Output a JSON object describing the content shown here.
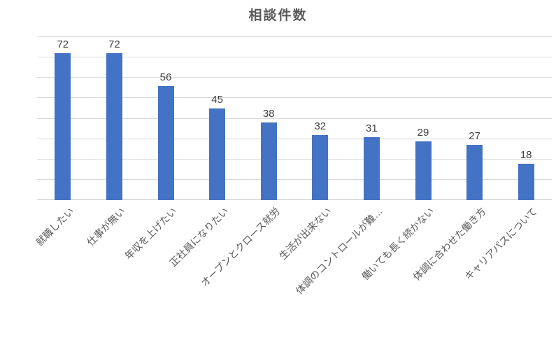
{
  "chart_data": {
    "type": "bar",
    "title": "相談件数",
    "categories": [
      "就職したい",
      "仕事が無い",
      "年収を上げたい",
      "正社員になりたい",
      "オープンとクロース就労",
      "生活が出来ない",
      "体調のコントロールが難…",
      "働いても長く続かない",
      "体調に合わせた働き方",
      "キャリアパスについて"
    ],
    "values": [
      72,
      72,
      56,
      45,
      38,
      32,
      31,
      29,
      27,
      18
    ],
    "xlabel": "",
    "ylabel": "",
    "ylim": [
      0,
      80
    ],
    "grid_interval": 10,
    "grid": true,
    "legend_position": "none",
    "data_labels_shown": true,
    "x_tick_rotation_deg": 45,
    "colors": {
      "bar": "#4472C4",
      "gridline": "#D9D9D9",
      "axis_line": "#C6C6C6",
      "title": "#595959",
      "data_label": "#404040",
      "category_label": "#595959",
      "background": "#FFFFFF"
    }
  }
}
